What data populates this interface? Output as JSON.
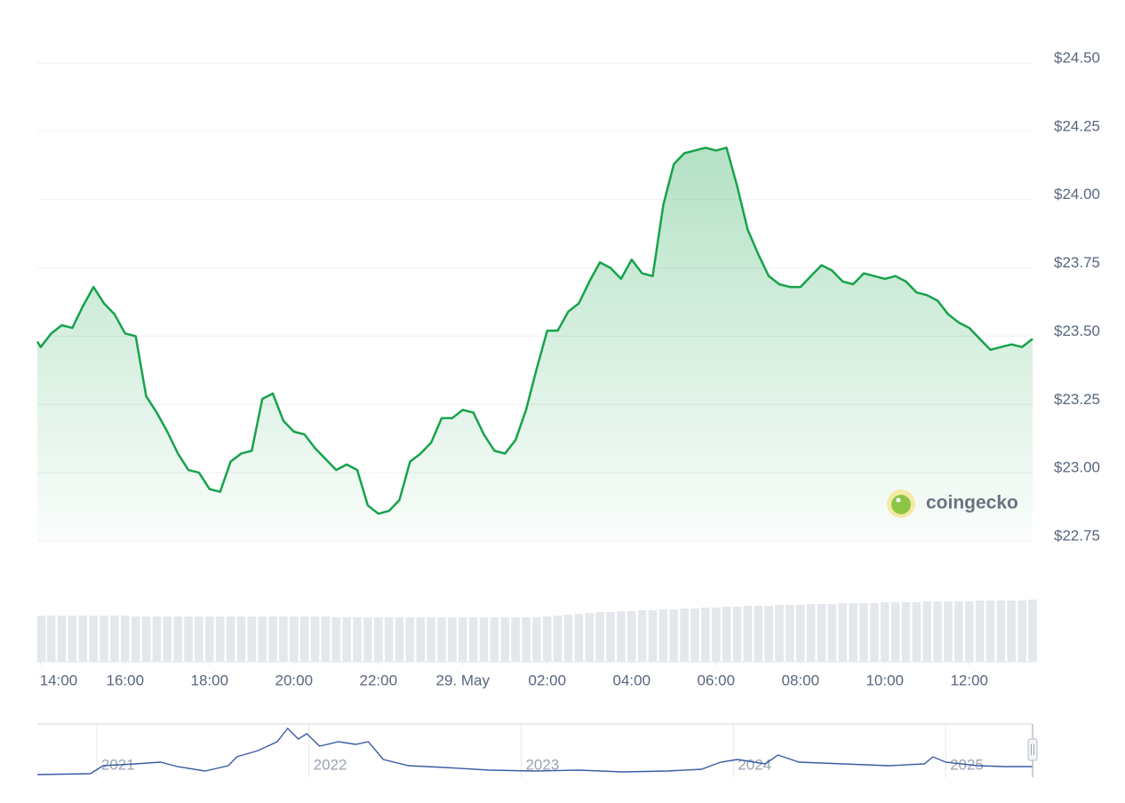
{
  "chart_data": [
    {
      "type": "area",
      "x": [
        13.92,
        14,
        14.25,
        14.5,
        14.75,
        15,
        15.25,
        15.5,
        15.75,
        16,
        16.25,
        16.5,
        16.75,
        17,
        17.25,
        17.5,
        17.75,
        18,
        18.25,
        18.5,
        18.75,
        19,
        19.25,
        19.5,
        19.75,
        20,
        20.25,
        20.5,
        20.75,
        21,
        21.25,
        21.5,
        21.75,
        22,
        22.25,
        22.5,
        22.75,
        23,
        23.25,
        23.5,
        23.75,
        24,
        24.25,
        24.5,
        24.75,
        25,
        25.25,
        25.5,
        25.75,
        26,
        26.25,
        26.5,
        26.75,
        27,
        27.25,
        27.5,
        27.75,
        28,
        28.25,
        28.5,
        28.75,
        29,
        29.25,
        29.5,
        29.75,
        30,
        30.25,
        30.5,
        30.75,
        31,
        31.25,
        31.5,
        31.75,
        32,
        32.25,
        32.5,
        32.75,
        33,
        33.25,
        33.5,
        33.75,
        34,
        34.25,
        34.5,
        34.75,
        35,
        35.25,
        35.5,
        35.75,
        36,
        36.25,
        36.5,
        36.75,
        37,
        37.25,
        37.5
      ],
      "series": [
        {
          "color": "#16a34a",
          "values": [
            23.48,
            23.46,
            23.51,
            23.54,
            23.53,
            23.61,
            23.68,
            23.62,
            23.58,
            23.51,
            23.5,
            23.28,
            23.22,
            23.15,
            23.07,
            23.01,
            23.0,
            22.94,
            22.93,
            23.04,
            23.07,
            23.08,
            23.27,
            23.29,
            23.19,
            23.15,
            23.14,
            23.09,
            23.05,
            23.01,
            23.03,
            23.01,
            22.88,
            22.85,
            22.86,
            22.9,
            23.04,
            23.07,
            23.11,
            23.2,
            23.2,
            23.23,
            23.22,
            23.14,
            23.08,
            23.07,
            23.12,
            23.23,
            23.38,
            23.52,
            23.52,
            23.59,
            23.62,
            23.7,
            23.77,
            23.75,
            23.71,
            23.78,
            23.73,
            23.72,
            23.98,
            24.13,
            24.17,
            24.18,
            24.19,
            24.18,
            24.19,
            24.05,
            23.89,
            23.8,
            23.72,
            23.69,
            23.68,
            23.68,
            23.72,
            23.76,
            23.74,
            23.7,
            23.69,
            23.73,
            23.72,
            23.71,
            23.72,
            23.7,
            23.66,
            23.65,
            23.63,
            23.58,
            23.55,
            23.53,
            23.49,
            23.45,
            23.46,
            23.47,
            23.46,
            23.49
          ]
        },
        {
          "type": "bar",
          "axis": "y2",
          "color": "#e4e7eb",
          "values": [
            52,
            52,
            52,
            52,
            52,
            52,
            52,
            52,
            52,
            52,
            51,
            51,
            51,
            51,
            51,
            51,
            51,
            51,
            51,
            51,
            51,
            51,
            51,
            51,
            51,
            51,
            51,
            51,
            51,
            50,
            50,
            50,
            50,
            50,
            50,
            50,
            50,
            50,
            50,
            50,
            50,
            50,
            50,
            50,
            50,
            50,
            50,
            50,
            50,
            51,
            52,
            53,
            54,
            55,
            56,
            56,
            57,
            57,
            58,
            58,
            59,
            59,
            60,
            60,
            61,
            61,
            62,
            62,
            63,
            63,
            63,
            64,
            64,
            64,
            65,
            65,
            65,
            66,
            66,
            66,
            66,
            67,
            67,
            67,
            67,
            68,
            68,
            68,
            68,
            68,
            69,
            69,
            69,
            69,
            69,
            70
          ]
        }
      ],
      "xlim": [
        13.92,
        37.5
      ],
      "xticks": [
        {
          "value": 14,
          "label": "14:00"
        },
        {
          "value": 16,
          "label": "16:00"
        },
        {
          "value": 18,
          "label": "18:00"
        },
        {
          "value": 20,
          "label": "20:00"
        },
        {
          "value": 22,
          "label": "22:00"
        },
        {
          "value": 24,
          "label": "29. May"
        },
        {
          "value": 26,
          "label": "02:00"
        },
        {
          "value": 28,
          "label": "04:00"
        },
        {
          "value": 30,
          "label": "06:00"
        },
        {
          "value": 32,
          "label": "08:00"
        },
        {
          "value": 34,
          "label": "10:00"
        },
        {
          "value": 36,
          "label": "12:00"
        }
      ],
      "ylim": [
        22.75,
        24.5
      ],
      "yticks": [
        {
          "value": 22.75,
          "label": "$22.75"
        },
        {
          "value": 23,
          "label": "$23.00"
        },
        {
          "value": 23.25,
          "label": "$23.25"
        },
        {
          "value": 23.5,
          "label": "$23.50"
        },
        {
          "value": 23.75,
          "label": "$23.75"
        },
        {
          "value": 24,
          "label": "$24.00"
        },
        {
          "value": 24.25,
          "label": "$24.25"
        },
        {
          "value": 24.5,
          "label": "$24.50"
        }
      ],
      "y2lim": [
        0,
        70
      ],
      "grid": true,
      "watermark": "coingecko"
    },
    {
      "type": "line",
      "color": "#3a5ba5",
      "x": [
        2020.72,
        2020.97,
        2021.03,
        2021.18,
        2021.3,
        2021.38,
        2021.51,
        2021.62,
        2021.66,
        2021.76,
        2021.85,
        2021.9,
        2021.95,
        2021.99,
        2022.05,
        2022.14,
        2022.22,
        2022.28,
        2022.35,
        2022.47,
        2022.64,
        2022.85,
        2023.06,
        2023.27,
        2023.48,
        2023.69,
        2023.85,
        2023.94,
        2024.02,
        2024.15,
        2024.21,
        2024.31,
        2024.52,
        2024.73,
        2024.9,
        2024.94,
        2025.0,
        2025.15,
        2025.28,
        2025.41
      ],
      "values": [
        1,
        2,
        11,
        13,
        15,
        10,
        5,
        11,
        21,
        28,
        38,
        53,
        41,
        47,
        33,
        38,
        35,
        38,
        18,
        11,
        9,
        6,
        5,
        6,
        4,
        5,
        7,
        15,
        18,
        13,
        23,
        15,
        13,
        11,
        13,
        21,
        15,
        11,
        10,
        10
      ],
      "xlim": [
        2020.72,
        2025.41
      ],
      "xticks": [
        2021,
        2022,
        2023,
        2024,
        2025
      ],
      "ylim": [
        0,
        56
      ]
    }
  ]
}
